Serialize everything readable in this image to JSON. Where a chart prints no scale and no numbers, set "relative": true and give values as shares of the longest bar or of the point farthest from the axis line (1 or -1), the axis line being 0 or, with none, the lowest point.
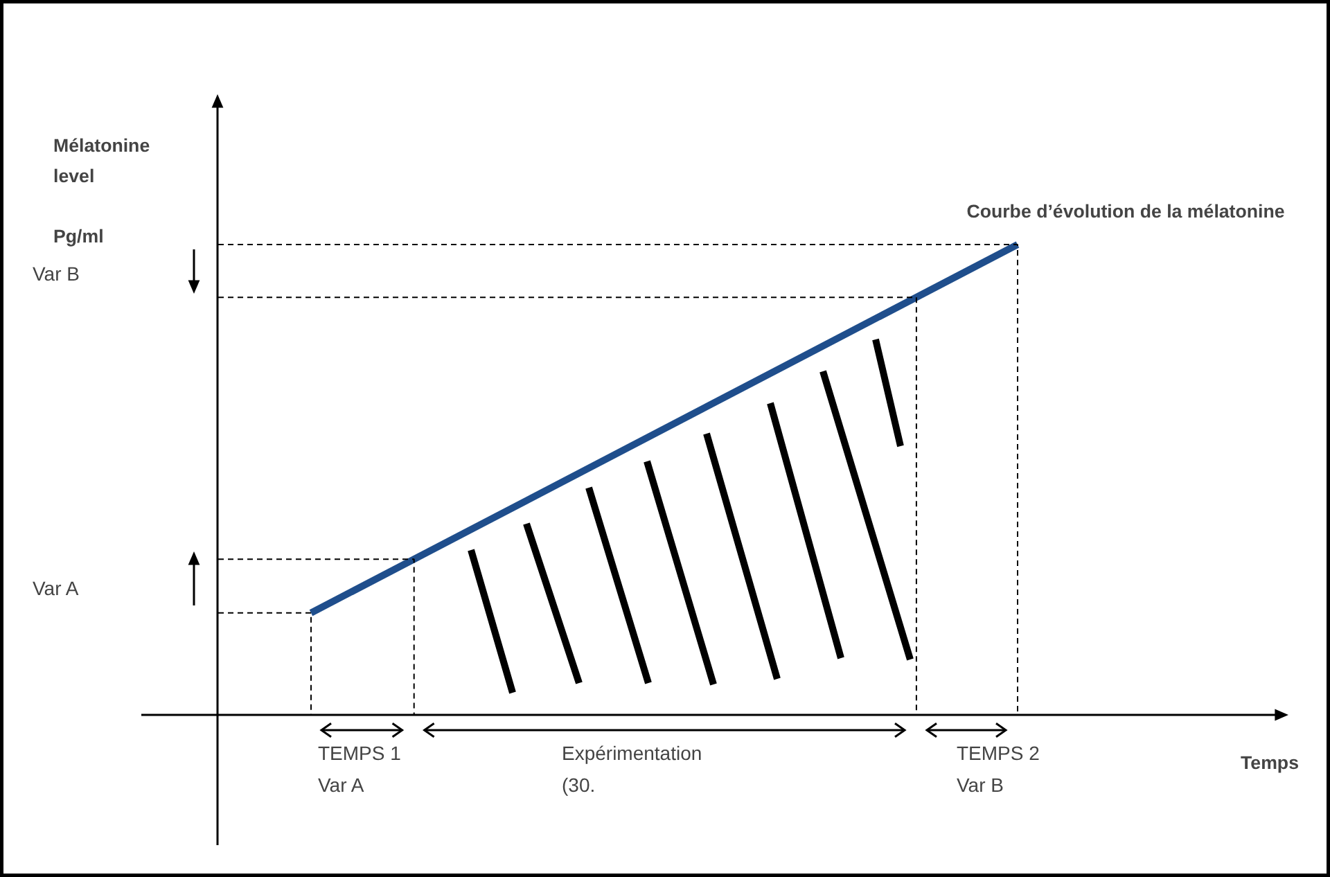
{
  "chart_data": {
    "type": "line",
    "relative": true,
    "title": "Courbe d’évolution de la mélatonine",
    "xlabel": "Temps",
    "ylabel": "Mélatonine\nlevel\n\nPg/ml",
    "categories": [
      null,
      null
    ],
    "series": [
      {
        "color": "#1f4e8c",
        "values": [
          0.218,
          1
        ]
      }
    ],
    "ref_lines": [
      {
        "axis": "y",
        "value": 0.218,
        "line_style": "dashed"
      },
      {
        "axis": "y",
        "value": 0.332,
        "line_style": "dashed"
      },
      {
        "axis": "y",
        "value": 0.888,
        "line_style": "dashed"
      }
    ],
    "annotations": [
      "Var A",
      "Var B",
      "TEMPS 1\nVar A",
      "Expérimentation\n(30.",
      "TEMPS 2\nVar B"
    ]
  }
}
